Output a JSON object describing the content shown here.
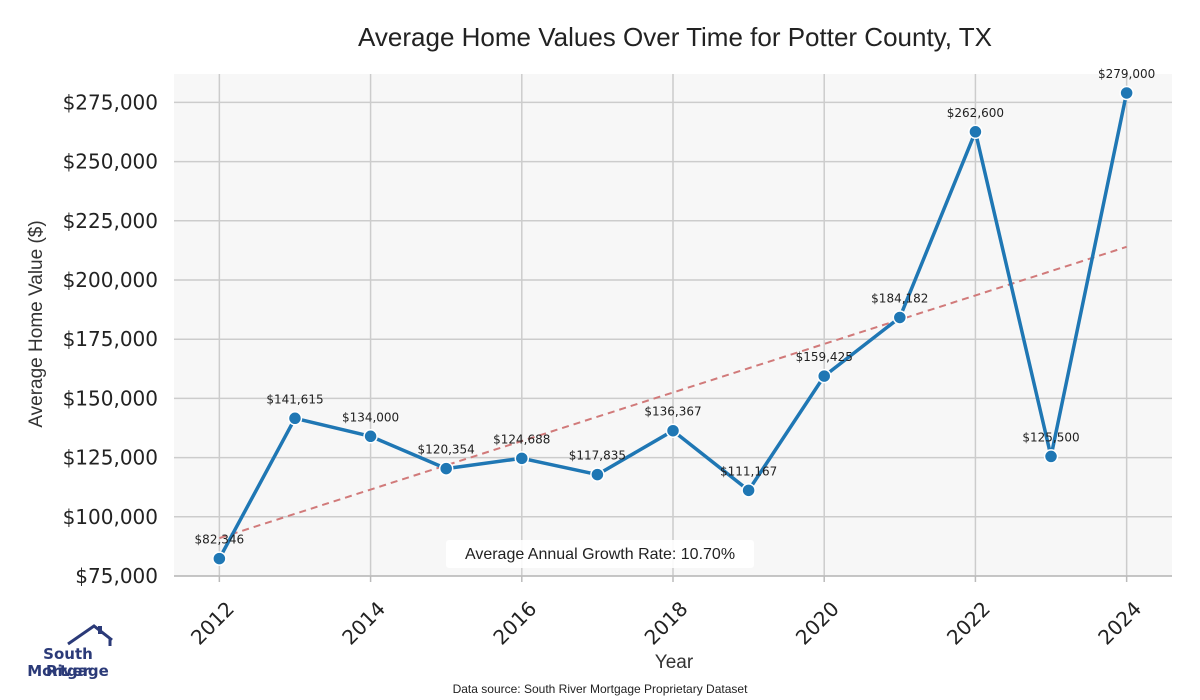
{
  "chart_data": {
    "type": "line",
    "title": "Average Home Values Over Time for Potter County, TX",
    "xlabel": "Year",
    "ylabel": "Average Home Value ($)",
    "x": [
      2012,
      2013,
      2014,
      2015,
      2016,
      2017,
      2018,
      2019,
      2020,
      2021,
      2022,
      2023,
      2024
    ],
    "series": [
      {
        "name": "Average Home Value",
        "values": [
          82346,
          141615,
          134000,
          120354,
          124688,
          117835,
          136367,
          111167,
          159425,
          184182,
          262600,
          125500,
          279000
        ],
        "labels": [
          "$82,346",
          "$141,615",
          "$134,000",
          "$120,354",
          "$124,688",
          "$117,835",
          "$136,367",
          "$111,167",
          "$159,425",
          "$184,182",
          "$262,600",
          "$125,500",
          "$279,000"
        ],
        "color": "#1f77b4"
      }
    ],
    "trendline": {
      "start": [
        2012,
        91000
      ],
      "end": [
        2024,
        214000
      ],
      "color": "#d17a7a",
      "style": "dashed"
    },
    "ylim": [
      75000,
      287000
    ],
    "xlim": [
      2011.4,
      2024.6
    ],
    "yticks": [
      75000,
      100000,
      125000,
      150000,
      175000,
      200000,
      225000,
      250000,
      275000
    ],
    "ytick_labels": [
      "$75,000",
      "$100,000",
      "$125,000",
      "$150,000",
      "$175,000",
      "$200,000",
      "$225,000",
      "$250,000",
      "$275,000"
    ],
    "xticks": [
      2012,
      2014,
      2016,
      2018,
      2020,
      2022,
      2024
    ],
    "xtick_labels": [
      "2012",
      "2014",
      "2016",
      "2018",
      "2020",
      "2022",
      "2024"
    ],
    "grid": true,
    "annotation": "Average Annual Growth Rate: 10.70%"
  },
  "footer": {
    "source": "Data source: South River Mortgage Proprietary Dataset"
  },
  "logo": {
    "line1": "South River",
    "line2": "Mortgage"
  },
  "colors": {
    "plot_bg": "#f7f7f7",
    "grid": "#cccccc",
    "line": "#1f77b4",
    "trend": "#d17a7a",
    "logo": "#2b3a78"
  }
}
